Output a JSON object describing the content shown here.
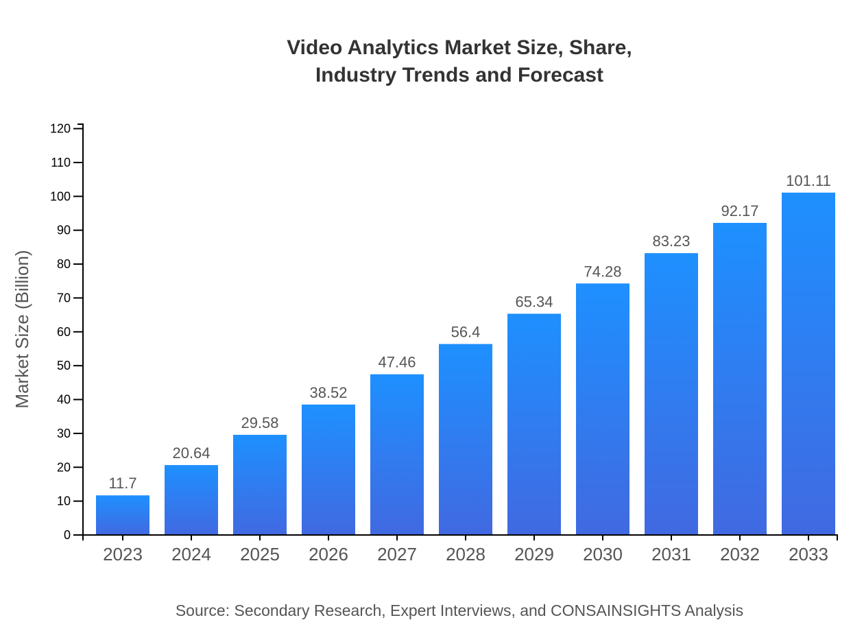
{
  "chart_data": {
    "type": "bar",
    "title_lines": [
      "Video Analytics Market Size, Share,",
      "Industry Trends and Forecast"
    ],
    "xlabel": "",
    "ylabel": "Market Size (Billion)",
    "categories": [
      "2023",
      "2024",
      "2025",
      "2026",
      "2027",
      "2028",
      "2029",
      "2030",
      "2031",
      "2032",
      "2033"
    ],
    "values": [
      11.7,
      20.64,
      29.58,
      38.52,
      47.46,
      56.4,
      65.34,
      74.28,
      83.23,
      92.17,
      101.11
    ],
    "data_labels": [
      "11.7",
      "20.64",
      "29.58",
      "38.52",
      "47.46",
      "56.4",
      "65.34",
      "74.28",
      "83.23",
      "92.17",
      "101.11"
    ],
    "yticks": [
      0,
      10,
      20,
      30,
      40,
      50,
      60,
      70,
      80,
      90,
      100,
      110,
      120
    ],
    "ylim": [
      0,
      121.33
    ],
    "grid": false,
    "bar_gradient": {
      "top": "#1e90ff",
      "bottom": "#4169e1"
    },
    "source": "Source: Secondary Research, Expert Interviews, and CONSAINSIGHTS Analysis"
  }
}
